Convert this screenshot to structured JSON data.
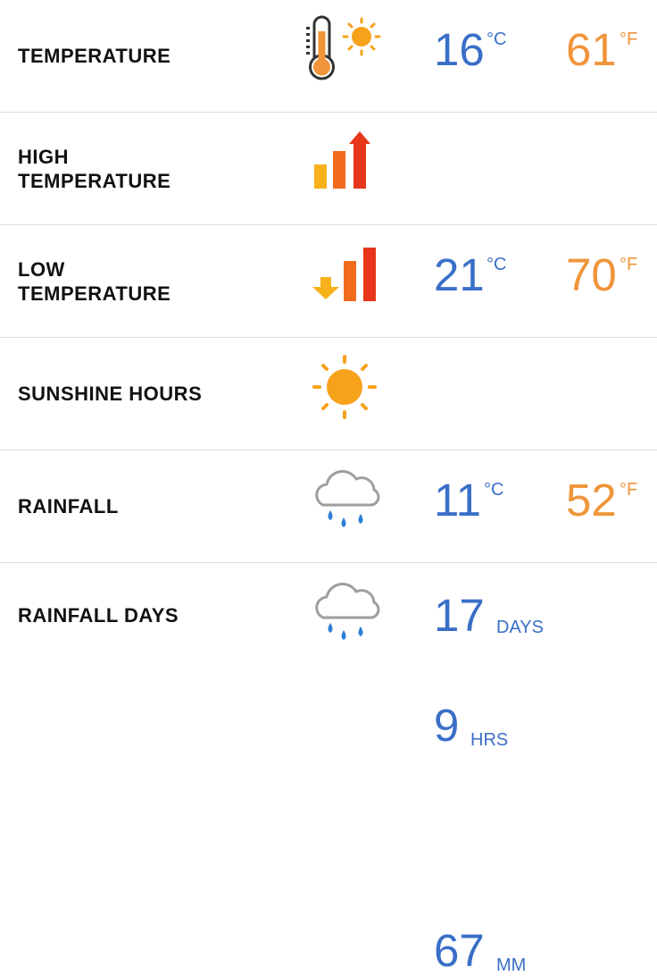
{
  "rows": [
    {
      "label": "TEMPERATURE",
      "icon": "thermometer-sun-icon",
      "metric_value": "16",
      "metric_unit": "°C",
      "imperial_value": "61",
      "imperial_unit": "°F"
    },
    {
      "label": "HIGH\nTEMPERATURE",
      "icon": "rising-bars-up-arrow-icon",
      "metric_value": "21",
      "metric_unit": "°C",
      "imperial_value": "70",
      "imperial_unit": "°F"
    },
    {
      "label": "LOW\nTEMPERATURE",
      "icon": "falling-bars-down-arrow-icon",
      "metric_value": "11",
      "metric_unit": "°C",
      "imperial_value": "52",
      "imperial_unit": "°F"
    },
    {
      "label": "SUNSHINE HOURS",
      "icon": "sun-icon",
      "value": "9",
      "unit": "HRS"
    },
    {
      "label": "RAINFALL",
      "icon": "rain-cloud-icon",
      "value": "67",
      "unit": "MM"
    },
    {
      "label": "RAINFALL DAYS",
      "icon": "rain-cloud-icon",
      "value": "17",
      "unit": "DAYS"
    }
  ],
  "colors": {
    "metric": "#3a6fc7",
    "imperial": "#f0953a",
    "sun": "#f7a21b",
    "bar_yellow": "#f7b21b",
    "bar_orange": "#f26b1d",
    "bar_red": "#e8361a",
    "cloud": "#9e9e9e",
    "rain": "#2a7fd4"
  }
}
